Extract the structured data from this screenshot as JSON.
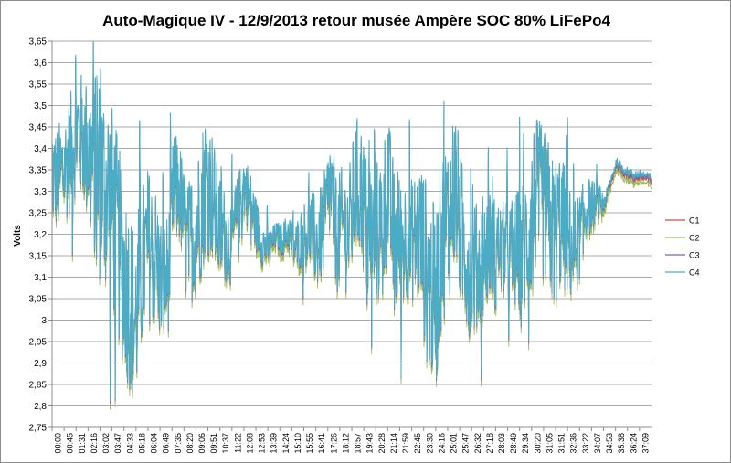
{
  "chart_data": {
    "type": "line",
    "title": "Auto-Magique IV - 12/9/2013  retour musée Ampère SOC 80% LiFePo4",
    "xlabel": "",
    "ylabel": "Volts",
    "ylim": [
      2.75,
      3.65
    ],
    "yticks": [
      "2,75",
      "2,8",
      "2,85",
      "2,9",
      "2,95",
      "3",
      "3,05",
      "3,1",
      "3,15",
      "3,2",
      "3,25",
      "3,3",
      "3,35",
      "3,4",
      "3,45",
      "3,5",
      "3,55",
      "3,6",
      "3,65"
    ],
    "categories": [
      "00:00",
      "00:45",
      "01:31",
      "02:16",
      "03:02",
      "03:47",
      "04:33",
      "05:18",
      "06:04",
      "06:49",
      "07:35",
      "08:20",
      "09:06",
      "09:51",
      "10:37",
      "11:22",
      "12:08",
      "12:53",
      "13:39",
      "14:24",
      "15:10",
      "15:55",
      "16:41",
      "17:26",
      "18:12",
      "18:57",
      "19:43",
      "20:28",
      "21:14",
      "21:59",
      "22:45",
      "23:30",
      "24:16",
      "25:01",
      "25:47",
      "26:32",
      "27:18",
      "28:03",
      "28:49",
      "29:34",
      "30:20",
      "31:05",
      "31:51",
      "32:36",
      "33:22",
      "34:07",
      "34:53",
      "35:38",
      "36:24",
      "37:09"
    ],
    "grid": true,
    "legend_position": "right",
    "colors": {
      "C1": "#c0504d",
      "C2": "#9bbb59",
      "C3": "#8064a2",
      "C4": "#4bacc6"
    },
    "series": [
      {
        "name": "C1",
        "offset": -0.01,
        "color": "#c0504d"
      },
      {
        "name": "C2",
        "offset": -0.02,
        "color": "#9bbb59"
      },
      {
        "name": "C3",
        "offset": -0.005,
        "color": "#8064a2"
      },
      {
        "name": "C4",
        "offset": 0.0,
        "color": "#4bacc6"
      }
    ],
    "base_profile": [
      [
        0.0,
        3.34
      ],
      [
        0.3,
        3.33
      ],
      [
        0.8,
        3.36
      ],
      [
        1.2,
        3.4
      ],
      [
        1.6,
        3.45
      ],
      [
        2.0,
        3.42
      ],
      [
        2.4,
        3.38
      ],
      [
        2.8,
        3.35
      ],
      [
        3.2,
        3.32
      ],
      [
        3.6,
        3.3
      ],
      [
        4.0,
        3.22
      ],
      [
        4.3,
        3.15
      ],
      [
        4.6,
        3.1
      ],
      [
        4.9,
        3.05
      ],
      [
        5.2,
        3.0
      ],
      [
        5.5,
        3.1
      ],
      [
        6.0,
        3.18
      ],
      [
        6.5,
        3.15
      ],
      [
        6.9,
        3.08
      ],
      [
        7.3,
        3.12
      ],
      [
        7.6,
        3.31
      ],
      [
        8.0,
        3.3
      ],
      [
        8.4,
        3.18
      ],
      [
        8.8,
        3.2
      ],
      [
        9.2,
        3.25
      ],
      [
        9.6,
        3.33
      ],
      [
        10.0,
        3.3
      ],
      [
        10.4,
        3.22
      ],
      [
        10.8,
        3.2
      ],
      [
        11.2,
        3.18
      ],
      [
        11.6,
        3.25
      ],
      [
        12.0,
        3.32
      ],
      [
        12.4,
        3.28
      ],
      [
        12.8,
        3.22
      ],
      [
        13.2,
        3.18
      ],
      [
        13.6,
        3.17
      ],
      [
        14.0,
        3.2
      ],
      [
        14.4,
        3.19
      ],
      [
        14.8,
        3.21
      ],
      [
        15.2,
        3.17
      ],
      [
        15.7,
        3.2
      ],
      [
        16.2,
        3.22
      ],
      [
        16.6,
        3.18
      ],
      [
        17.0,
        3.22
      ],
      [
        17.4,
        3.32
      ],
      [
        17.8,
        3.2
      ],
      [
        18.2,
        3.22
      ],
      [
        18.6,
        3.21
      ],
      [
        19.0,
        3.32
      ],
      [
        19.4,
        3.3
      ],
      [
        19.8,
        3.18
      ],
      [
        20.2,
        3.2
      ],
      [
        20.6,
        3.22
      ],
      [
        21.0,
        3.32
      ],
      [
        21.4,
        3.19
      ],
      [
        21.8,
        3.18
      ],
      [
        22.2,
        3.2
      ],
      [
        22.6,
        3.19
      ],
      [
        23.0,
        3.21
      ],
      [
        23.5,
        3.1
      ],
      [
        24.0,
        3.05
      ],
      [
        24.4,
        3.2
      ],
      [
        24.8,
        3.24
      ],
      [
        25.2,
        3.32
      ],
      [
        25.6,
        3.2
      ],
      [
        26.0,
        3.15
      ],
      [
        26.5,
        3.12
      ],
      [
        27.0,
        3.15
      ],
      [
        27.4,
        3.18
      ],
      [
        27.8,
        3.18
      ],
      [
        28.2,
        3.17
      ],
      [
        28.6,
        3.16
      ],
      [
        29.0,
        3.16
      ],
      [
        29.4,
        3.17
      ],
      [
        29.8,
        3.2
      ],
      [
        30.2,
        3.3
      ],
      [
        30.6,
        3.28
      ],
      [
        31.0,
        3.25
      ],
      [
        31.4,
        3.2
      ],
      [
        31.8,
        3.24
      ],
      [
        32.2,
        3.2
      ],
      [
        32.6,
        3.16
      ],
      [
        33.0,
        3.2
      ],
      [
        33.4,
        3.26
      ],
      [
        33.8,
        3.27
      ],
      [
        34.2,
        3.28
      ],
      [
        34.6,
        3.28
      ],
      [
        35.0,
        3.33
      ],
      [
        35.3,
        3.37
      ],
      [
        35.8,
        3.35
      ],
      [
        36.4,
        3.34
      ],
      [
        37.0,
        3.34
      ],
      [
        37.5,
        3.33
      ]
    ],
    "noise_amplitude": [
      [
        0,
        0.12
      ],
      [
        2,
        0.15
      ],
      [
        3,
        0.25
      ],
      [
        5,
        0.22
      ],
      [
        7,
        0.15
      ],
      [
        8,
        0.12
      ],
      [
        9.5,
        0.18
      ],
      [
        11,
        0.1
      ],
      [
        13,
        0.06
      ],
      [
        14,
        0.03
      ],
      [
        15,
        0.05
      ],
      [
        17,
        0.12
      ],
      [
        19,
        0.16
      ],
      [
        21,
        0.18
      ],
      [
        22.5,
        0.14
      ],
      [
        23.5,
        0.22
      ],
      [
        25,
        0.2
      ],
      [
        27,
        0.14
      ],
      [
        28,
        0.1
      ],
      [
        30,
        0.18
      ],
      [
        31.5,
        0.18
      ],
      [
        33,
        0.1
      ],
      [
        34.5,
        0.02
      ],
      [
        35,
        0.01
      ],
      [
        37.5,
        0.01
      ]
    ]
  }
}
